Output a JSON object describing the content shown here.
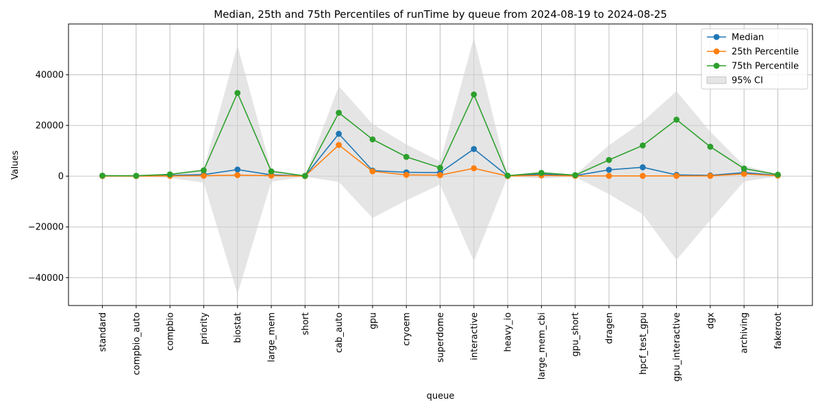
{
  "chart_data": {
    "type": "line",
    "title": "Median, 25th and 75th Percentiles of runTime by queue from 2024-08-19 to 2024-08-25",
    "xlabel": "queue",
    "ylabel": "Values",
    "ylim": [
      -51000,
      60000
    ],
    "yticks": [
      -40000,
      -20000,
      0,
      20000,
      40000
    ],
    "ytick_labels": [
      "−40000",
      "−20000",
      "0",
      "20000",
      "40000"
    ],
    "grid": true,
    "legend_position": "top-right",
    "categories": [
      "standard",
      "compbio_auto",
      "compbio",
      "priority",
      "biostat",
      "large_mem",
      "short",
      "cab_auto",
      "gpu",
      "cryoem",
      "superdome",
      "interactive",
      "heavy_io",
      "large_mem_cbi",
      "gpu_short",
      "dragen",
      "hpcf_test_gpu",
      "gpu_interactive",
      "dgx",
      "archiving",
      "fakeroot"
    ],
    "series": [
      {
        "name": "Median",
        "color": "#1f77b4",
        "values": [
          100,
          80,
          300,
          600,
          2600,
          500,
          50,
          16700,
          2200,
          1500,
          1400,
          10700,
          100,
          800,
          200,
          2500,
          3500,
          500,
          300,
          1400,
          300
        ]
      },
      {
        "name": "25th Percentile",
        "color": "#ff7f0e",
        "values": [
          50,
          40,
          100,
          150,
          400,
          200,
          20,
          12300,
          1900,
          500,
          400,
          3100,
          50,
          300,
          100,
          100,
          100,
          100,
          100,
          900,
          200
        ]
      },
      {
        "name": "75th Percentile",
        "color": "#2ca02c",
        "values": [
          200,
          150,
          700,
          2300,
          32800,
          1900,
          100,
          25000,
          14500,
          7600,
          3300,
          32200,
          200,
          1300,
          400,
          6400,
          12100,
          22300,
          11600,
          3000,
          600
        ]
      }
    ],
    "ci_band": {
      "name": "95% CI",
      "color": "#d3d3d3",
      "lower": [
        -300,
        -200,
        -700,
        -2600,
        -46500,
        -2200,
        -200,
        -2300,
        -16500,
        -9500,
        -3300,
        -33500,
        -200,
        -900,
        -300,
        -7100,
        -15000,
        -33000,
        -17300,
        -2100,
        -100
      ],
      "upper": [
        400,
        300,
        1000,
        2800,
        51500,
        2600,
        200,
        35500,
        20500,
        12500,
        5800,
        54500,
        300,
        1800,
        500,
        12200,
        21500,
        33500,
        17500,
        4200,
        800
      ]
    }
  }
}
